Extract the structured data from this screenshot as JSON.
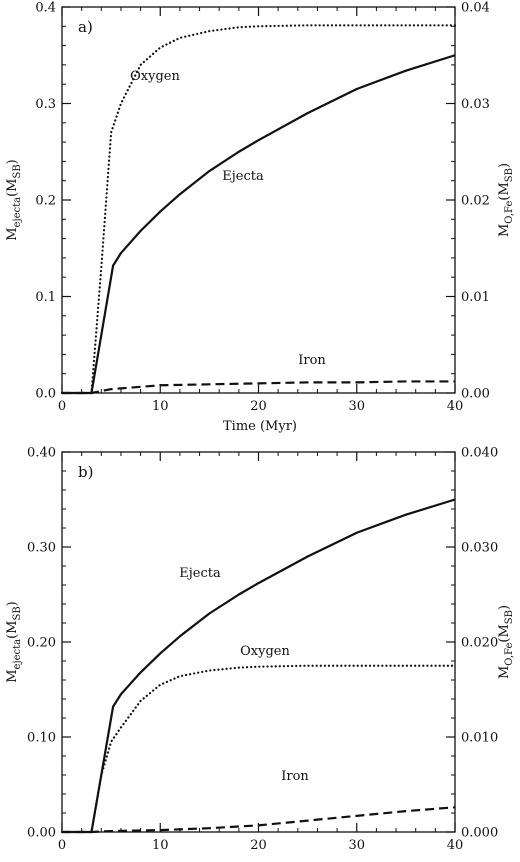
{
  "chart_data": [
    {
      "type": "line",
      "panel_label": "a)",
      "xlabel": "Time (Myr)",
      "ylabel_left": {
        "main": "M",
        "sub": "ejecta",
        "unit": "(M",
        "unit_sub": "SB",
        "close": ")"
      },
      "ylabel_right": {
        "main": "M",
        "sub": "O,Fe",
        "unit": "(M",
        "unit_sub": "SB",
        "close": ")"
      },
      "xlim": [
        0,
        40
      ],
      "ylim_left": [
        0,
        0.4
      ],
      "ylim_right": [
        0,
        0.04
      ],
      "xticks": [
        "0",
        "10",
        "20",
        "30",
        "40"
      ],
      "yticks_left": [
        "0.0",
        "0.1",
        "0.2",
        "0.3",
        "0.4"
      ],
      "yticks_right": [
        "0.00",
        "0.01",
        "0.02",
        "0.03",
        "0.04"
      ],
      "grid": false,
      "series": [
        {
          "name": "Ejecta",
          "axis": "left",
          "style": "solid",
          "x": [
            0,
            3,
            5.2,
            6,
            8,
            10,
            12,
            15,
            18,
            20,
            25,
            30,
            35,
            40
          ],
          "y": [
            0,
            0,
            0.132,
            0.145,
            0.168,
            0.188,
            0.206,
            0.23,
            0.25,
            0.262,
            0.29,
            0.315,
            0.334,
            0.35
          ]
        },
        {
          "name": "Oxygen",
          "axis": "right",
          "style": "dotted",
          "x": [
            0,
            3,
            4,
            5,
            6,
            8,
            10,
            12,
            15,
            18,
            20,
            25,
            30,
            35,
            40
          ],
          "y": [
            0,
            0,
            0.013,
            0.027,
            0.03,
            0.034,
            0.0358,
            0.0368,
            0.0375,
            0.0379,
            0.038,
            0.0381,
            0.0381,
            0.0381,
            0.0381
          ]
        },
        {
          "name": "Iron",
          "axis": "right",
          "style": "dashed",
          "x": [
            0,
            3,
            5,
            10,
            15,
            20,
            25,
            30,
            35,
            40
          ],
          "y": [
            0,
            0,
            0.0004,
            0.0008,
            0.0009,
            0.001,
            0.0011,
            0.0011,
            0.0012,
            0.0012
          ]
        }
      ]
    },
    {
      "type": "line",
      "panel_label": "b)",
      "xlabel": "",
      "ylabel_left": {
        "main": "M",
        "sub": "ejecta",
        "unit": "(M",
        "unit_sub": "SB",
        "close": ")"
      },
      "ylabel_right": {
        "main": "M",
        "sub": "O,Fe",
        "unit": "(M",
        "unit_sub": "SB",
        "close": ")"
      },
      "xlim": [
        0,
        40
      ],
      "ylim_left": [
        0,
        0.4
      ],
      "ylim_right": [
        0,
        0.04
      ],
      "xticks": [
        "0",
        "10",
        "20",
        "30",
        "40"
      ],
      "yticks_left": [
        "0.00",
        "0.10",
        "0.20",
        "0.30",
        "0.40"
      ],
      "yticks_right": [
        "0.000",
        "0.010",
        "0.020",
        "0.030",
        "0.040"
      ],
      "grid": false,
      "series": [
        {
          "name": "Ejecta",
          "axis": "left",
          "style": "solid",
          "x": [
            0,
            3,
            5.2,
            6,
            8,
            10,
            12,
            15,
            18,
            20,
            25,
            30,
            35,
            40
          ],
          "y": [
            0,
            0,
            0.132,
            0.145,
            0.168,
            0.188,
            0.206,
            0.23,
            0.25,
            0.262,
            0.29,
            0.315,
            0.334,
            0.35
          ]
        },
        {
          "name": "Oxygen",
          "axis": "right",
          "style": "dotted",
          "x": [
            0,
            3,
            4,
            5,
            6,
            8,
            10,
            12,
            15,
            18,
            20,
            25,
            30,
            35,
            40
          ],
          "y": [
            0,
            0,
            0.006,
            0.0095,
            0.011,
            0.0138,
            0.0155,
            0.0164,
            0.017,
            0.0173,
            0.0174,
            0.0175,
            0.0175,
            0.0175,
            0.0175
          ]
        },
        {
          "name": "Iron",
          "axis": "right",
          "style": "dashed",
          "x": [
            0,
            3,
            5,
            10,
            15,
            20,
            25,
            30,
            35,
            40
          ],
          "y": [
            0,
            0,
            0.0001,
            0.0002,
            0.0004,
            0.0007,
            0.0012,
            0.0017,
            0.0022,
            0.0026
          ]
        }
      ]
    }
  ]
}
